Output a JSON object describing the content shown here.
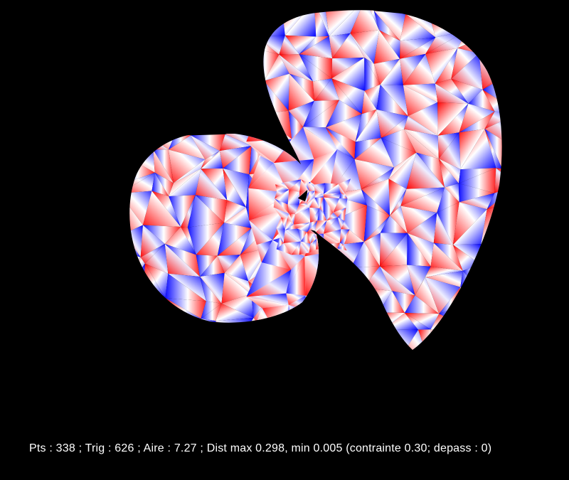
{
  "scene": {
    "background_color": "#000000",
    "mesh_colors": [
      "#ff0000",
      "#0000ff",
      "#ffffff"
    ]
  },
  "status": {
    "text": "Pts : 338 ; Trig : 626 ; Aire : 7.27 ; Dist max 0.298, min 0.005 (contrainte 0.30; depass : 0)"
  }
}
